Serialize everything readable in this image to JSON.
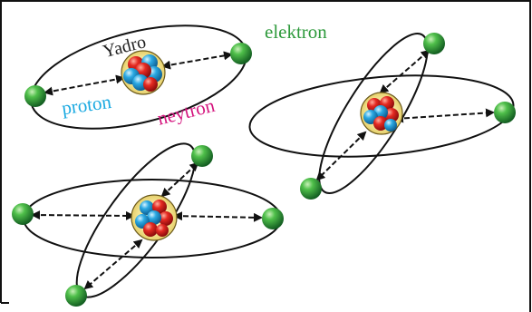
{
  "labels": {
    "nucleus": "Yadro",
    "proton": "proton",
    "neutron": "neytron",
    "electron": "elektron"
  },
  "colors": {
    "proton": "#d8201e",
    "neutron": "#2aa6e0",
    "electron": "#2f9a3b",
    "nucleus_glow": "#f3e596",
    "label_proton": "#19a9e1",
    "label_neutron": "#d4137d",
    "label_electron": "#2e9a3c",
    "label_nucleus": "#222222"
  }
}
